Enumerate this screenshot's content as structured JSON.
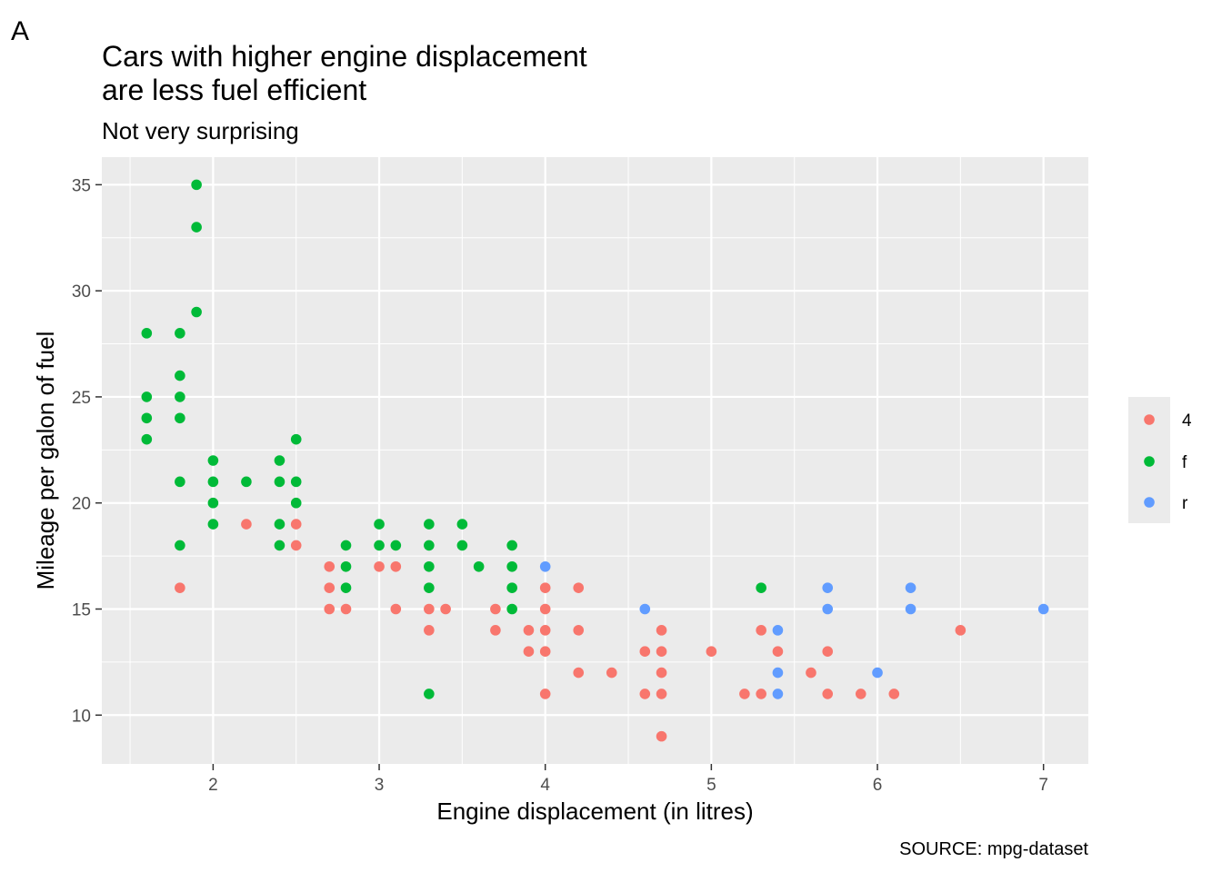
{
  "chart_data": {
    "type": "scatter",
    "tag": "A",
    "title_lines": [
      "Cars with higher engine displacement",
      "are less fuel efficient"
    ],
    "subtitle": "Not very surprising",
    "xlabel": "Engine displacement (in litres)",
    "ylabel": "Mileage per galon of fuel",
    "caption": "SOURCE: mpg-dataset",
    "xlim": [
      1.33,
      7.27
    ],
    "ylim": [
      7.7,
      36.3
    ],
    "x_ticks": [
      2,
      3,
      4,
      5,
      6,
      7
    ],
    "y_ticks": [
      10,
      15,
      20,
      25,
      30,
      35
    ],
    "grid": true,
    "legend_position": "right",
    "colors": {
      "4": "#F8766D",
      "f": "#00BA38",
      "r": "#619CFF"
    },
    "series": [
      {
        "name": "4",
        "points": [
          [
            1.8,
            16
          ],
          [
            2.2,
            19
          ],
          [
            2.5,
            18
          ],
          [
            2.5,
            19
          ],
          [
            2.7,
            17
          ],
          [
            2.7,
            16
          ],
          [
            2.7,
            15
          ],
          [
            2.8,
            15
          ],
          [
            3.0,
            17
          ],
          [
            3.1,
            17
          ],
          [
            3.1,
            15
          ],
          [
            3.3,
            15
          ],
          [
            3.3,
            14
          ],
          [
            3.4,
            15
          ],
          [
            3.7,
            15
          ],
          [
            3.7,
            14
          ],
          [
            3.9,
            14
          ],
          [
            3.9,
            13
          ],
          [
            4.0,
            16
          ],
          [
            4.0,
            15
          ],
          [
            4.0,
            14
          ],
          [
            4.0,
            13
          ],
          [
            4.0,
            11
          ],
          [
            4.2,
            16
          ],
          [
            4.2,
            14
          ],
          [
            4.2,
            12
          ],
          [
            4.4,
            12
          ],
          [
            4.6,
            13
          ],
          [
            4.6,
            11
          ],
          [
            4.7,
            14
          ],
          [
            4.7,
            13
          ],
          [
            4.7,
            12
          ],
          [
            4.7,
            11
          ],
          [
            4.7,
            9
          ],
          [
            5.0,
            13
          ],
          [
            5.2,
            11
          ],
          [
            5.3,
            14
          ],
          [
            5.3,
            11
          ],
          [
            5.4,
            13
          ],
          [
            5.6,
            12
          ],
          [
            5.7,
            13
          ],
          [
            5.7,
            11
          ],
          [
            5.9,
            11
          ],
          [
            6.1,
            11
          ],
          [
            6.5,
            14
          ]
        ]
      },
      {
        "name": "f",
        "points": [
          [
            1.6,
            28
          ],
          [
            1.6,
            25
          ],
          [
            1.6,
            24
          ],
          [
            1.6,
            23
          ],
          [
            1.8,
            28
          ],
          [
            1.8,
            26
          ],
          [
            1.8,
            25
          ],
          [
            1.8,
            24
          ],
          [
            1.8,
            21
          ],
          [
            1.8,
            18
          ],
          [
            1.9,
            35
          ],
          [
            1.9,
            33
          ],
          [
            1.9,
            29
          ],
          [
            2.0,
            22
          ],
          [
            2.0,
            21
          ],
          [
            2.0,
            20
          ],
          [
            2.0,
            19
          ],
          [
            2.2,
            21
          ],
          [
            2.4,
            22
          ],
          [
            2.4,
            21
          ],
          [
            2.4,
            19
          ],
          [
            2.4,
            18
          ],
          [
            2.5,
            23
          ],
          [
            2.5,
            21
          ],
          [
            2.5,
            20
          ],
          [
            2.8,
            18
          ],
          [
            2.8,
            17
          ],
          [
            2.8,
            16
          ],
          [
            3.0,
            19
          ],
          [
            3.0,
            18
          ],
          [
            3.1,
            18
          ],
          [
            3.3,
            19
          ],
          [
            3.3,
            18
          ],
          [
            3.3,
            17
          ],
          [
            3.3,
            16
          ],
          [
            3.3,
            11
          ],
          [
            3.5,
            19
          ],
          [
            3.5,
            18
          ],
          [
            3.6,
            17
          ],
          [
            3.8,
            18
          ],
          [
            3.8,
            17
          ],
          [
            3.8,
            16
          ],
          [
            3.8,
            15
          ],
          [
            5.3,
            16
          ]
        ]
      },
      {
        "name": "r",
        "points": [
          [
            4.0,
            17
          ],
          [
            4.6,
            15
          ],
          [
            5.4,
            14
          ],
          [
            5.4,
            12
          ],
          [
            5.4,
            11
          ],
          [
            5.7,
            16
          ],
          [
            5.7,
            15
          ],
          [
            6.0,
            12
          ],
          [
            6.2,
            16
          ],
          [
            6.2,
            15
          ],
          [
            7.0,
            15
          ]
        ]
      }
    ]
  }
}
